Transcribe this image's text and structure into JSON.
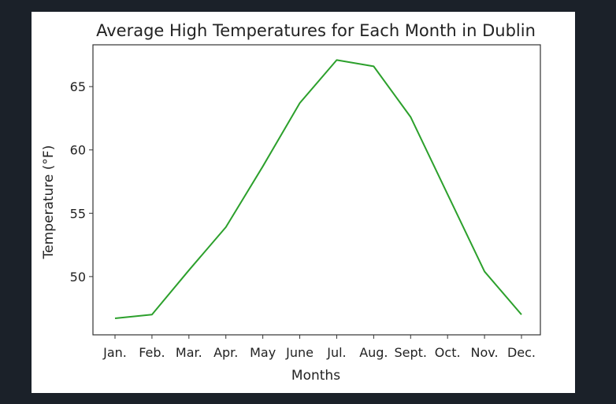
{
  "chart_data": {
    "type": "line",
    "title": "Average High Temperatures for Each Month in Dublin",
    "xlabel": "Months",
    "ylabel": "Temperature (°F)",
    "categories": [
      "Jan.",
      "Feb.",
      "Mar.",
      "Apr.",
      "May",
      "June",
      "Jul.",
      "Aug.",
      "Sept.",
      "Oct.",
      "Nov.",
      "Dec."
    ],
    "series": [
      {
        "values": [
          46.7,
          47.0,
          50.5,
          53.9,
          58.7,
          63.7,
          67.1,
          66.6,
          62.6,
          56.5,
          50.4,
          47.0
        ],
        "color": "#2ca02c"
      }
    ],
    "ylim": [
      45.4,
      68.3
    ],
    "yticks": [
      50,
      55,
      60,
      65
    ],
    "grid": false
  }
}
